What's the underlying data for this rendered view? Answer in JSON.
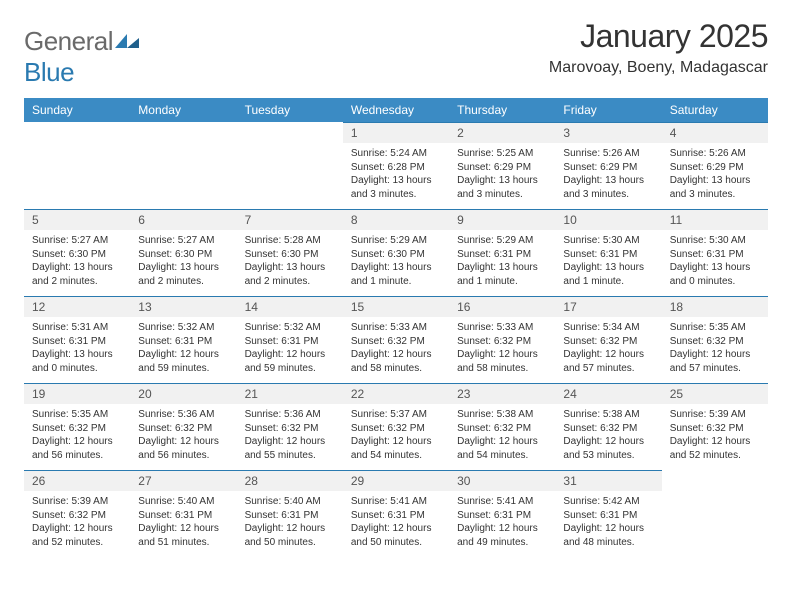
{
  "brand": {
    "word1": "General",
    "word2": "Blue"
  },
  "title": "January 2025",
  "location": "Marovoay, Boeny, Madagascar",
  "colors": {
    "header_bg": "#3b8bc4",
    "header_text": "#ffffff",
    "daynum_bg": "#f1f1f1",
    "daynum_border": "#2a7ab0",
    "text": "#333333",
    "logo_gray": "#6a6a6a",
    "logo_blue": "#2a7ab0"
  },
  "day_labels": [
    "Sunday",
    "Monday",
    "Tuesday",
    "Wednesday",
    "Thursday",
    "Friday",
    "Saturday"
  ],
  "first_weekday_index": 3,
  "days": [
    {
      "n": 1,
      "sr": "5:24 AM",
      "ss": "6:28 PM",
      "dl": "13 hours and 3 minutes."
    },
    {
      "n": 2,
      "sr": "5:25 AM",
      "ss": "6:29 PM",
      "dl": "13 hours and 3 minutes."
    },
    {
      "n": 3,
      "sr": "5:26 AM",
      "ss": "6:29 PM",
      "dl": "13 hours and 3 minutes."
    },
    {
      "n": 4,
      "sr": "5:26 AM",
      "ss": "6:29 PM",
      "dl": "13 hours and 3 minutes."
    },
    {
      "n": 5,
      "sr": "5:27 AM",
      "ss": "6:30 PM",
      "dl": "13 hours and 2 minutes."
    },
    {
      "n": 6,
      "sr": "5:27 AM",
      "ss": "6:30 PM",
      "dl": "13 hours and 2 minutes."
    },
    {
      "n": 7,
      "sr": "5:28 AM",
      "ss": "6:30 PM",
      "dl": "13 hours and 2 minutes."
    },
    {
      "n": 8,
      "sr": "5:29 AM",
      "ss": "6:30 PM",
      "dl": "13 hours and 1 minute."
    },
    {
      "n": 9,
      "sr": "5:29 AM",
      "ss": "6:31 PM",
      "dl": "13 hours and 1 minute."
    },
    {
      "n": 10,
      "sr": "5:30 AM",
      "ss": "6:31 PM",
      "dl": "13 hours and 1 minute."
    },
    {
      "n": 11,
      "sr": "5:30 AM",
      "ss": "6:31 PM",
      "dl": "13 hours and 0 minutes."
    },
    {
      "n": 12,
      "sr": "5:31 AM",
      "ss": "6:31 PM",
      "dl": "13 hours and 0 minutes."
    },
    {
      "n": 13,
      "sr": "5:32 AM",
      "ss": "6:31 PM",
      "dl": "12 hours and 59 minutes."
    },
    {
      "n": 14,
      "sr": "5:32 AM",
      "ss": "6:31 PM",
      "dl": "12 hours and 59 minutes."
    },
    {
      "n": 15,
      "sr": "5:33 AM",
      "ss": "6:32 PM",
      "dl": "12 hours and 58 minutes."
    },
    {
      "n": 16,
      "sr": "5:33 AM",
      "ss": "6:32 PM",
      "dl": "12 hours and 58 minutes."
    },
    {
      "n": 17,
      "sr": "5:34 AM",
      "ss": "6:32 PM",
      "dl": "12 hours and 57 minutes."
    },
    {
      "n": 18,
      "sr": "5:35 AM",
      "ss": "6:32 PM",
      "dl": "12 hours and 57 minutes."
    },
    {
      "n": 19,
      "sr": "5:35 AM",
      "ss": "6:32 PM",
      "dl": "12 hours and 56 minutes."
    },
    {
      "n": 20,
      "sr": "5:36 AM",
      "ss": "6:32 PM",
      "dl": "12 hours and 56 minutes."
    },
    {
      "n": 21,
      "sr": "5:36 AM",
      "ss": "6:32 PM",
      "dl": "12 hours and 55 minutes."
    },
    {
      "n": 22,
      "sr": "5:37 AM",
      "ss": "6:32 PM",
      "dl": "12 hours and 54 minutes."
    },
    {
      "n": 23,
      "sr": "5:38 AM",
      "ss": "6:32 PM",
      "dl": "12 hours and 54 minutes."
    },
    {
      "n": 24,
      "sr": "5:38 AM",
      "ss": "6:32 PM",
      "dl": "12 hours and 53 minutes."
    },
    {
      "n": 25,
      "sr": "5:39 AM",
      "ss": "6:32 PM",
      "dl": "12 hours and 52 minutes."
    },
    {
      "n": 26,
      "sr": "5:39 AM",
      "ss": "6:32 PM",
      "dl": "12 hours and 52 minutes."
    },
    {
      "n": 27,
      "sr": "5:40 AM",
      "ss": "6:31 PM",
      "dl": "12 hours and 51 minutes."
    },
    {
      "n": 28,
      "sr": "5:40 AM",
      "ss": "6:31 PM",
      "dl": "12 hours and 50 minutes."
    },
    {
      "n": 29,
      "sr": "5:41 AM",
      "ss": "6:31 PM",
      "dl": "12 hours and 50 minutes."
    },
    {
      "n": 30,
      "sr": "5:41 AM",
      "ss": "6:31 PM",
      "dl": "12 hours and 49 minutes."
    },
    {
      "n": 31,
      "sr": "5:42 AM",
      "ss": "6:31 PM",
      "dl": "12 hours and 48 minutes."
    }
  ],
  "labels": {
    "sunrise": "Sunrise:",
    "sunset": "Sunset:",
    "daylight": "Daylight:"
  }
}
